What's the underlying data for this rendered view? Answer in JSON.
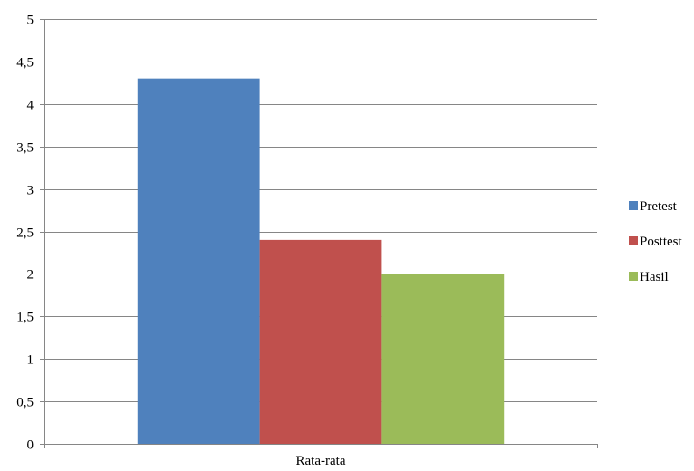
{
  "chart_data": {
    "type": "bar",
    "categories": [
      "Rata-rata"
    ],
    "series": [
      {
        "name": "Pretest",
        "values": [
          4.3
        ],
        "color": "#4F81BD"
      },
      {
        "name": "Posttest",
        "values": [
          2.4
        ],
        "color": "#C0504D"
      },
      {
        "name": "Hasil",
        "values": [
          2.0
        ],
        "color": "#9BBB59"
      }
    ],
    "y_ticks": [
      "0",
      "0,5",
      "1",
      "1,5",
      "2",
      "2,5",
      "3",
      "3,5",
      "4",
      "4,5",
      "5"
    ],
    "ylim": [
      0,
      5
    ],
    "y_step": 0.5,
    "grid": true,
    "legend_position": "right",
    "gridline_color": "#868686",
    "axis_color": "#868686"
  }
}
